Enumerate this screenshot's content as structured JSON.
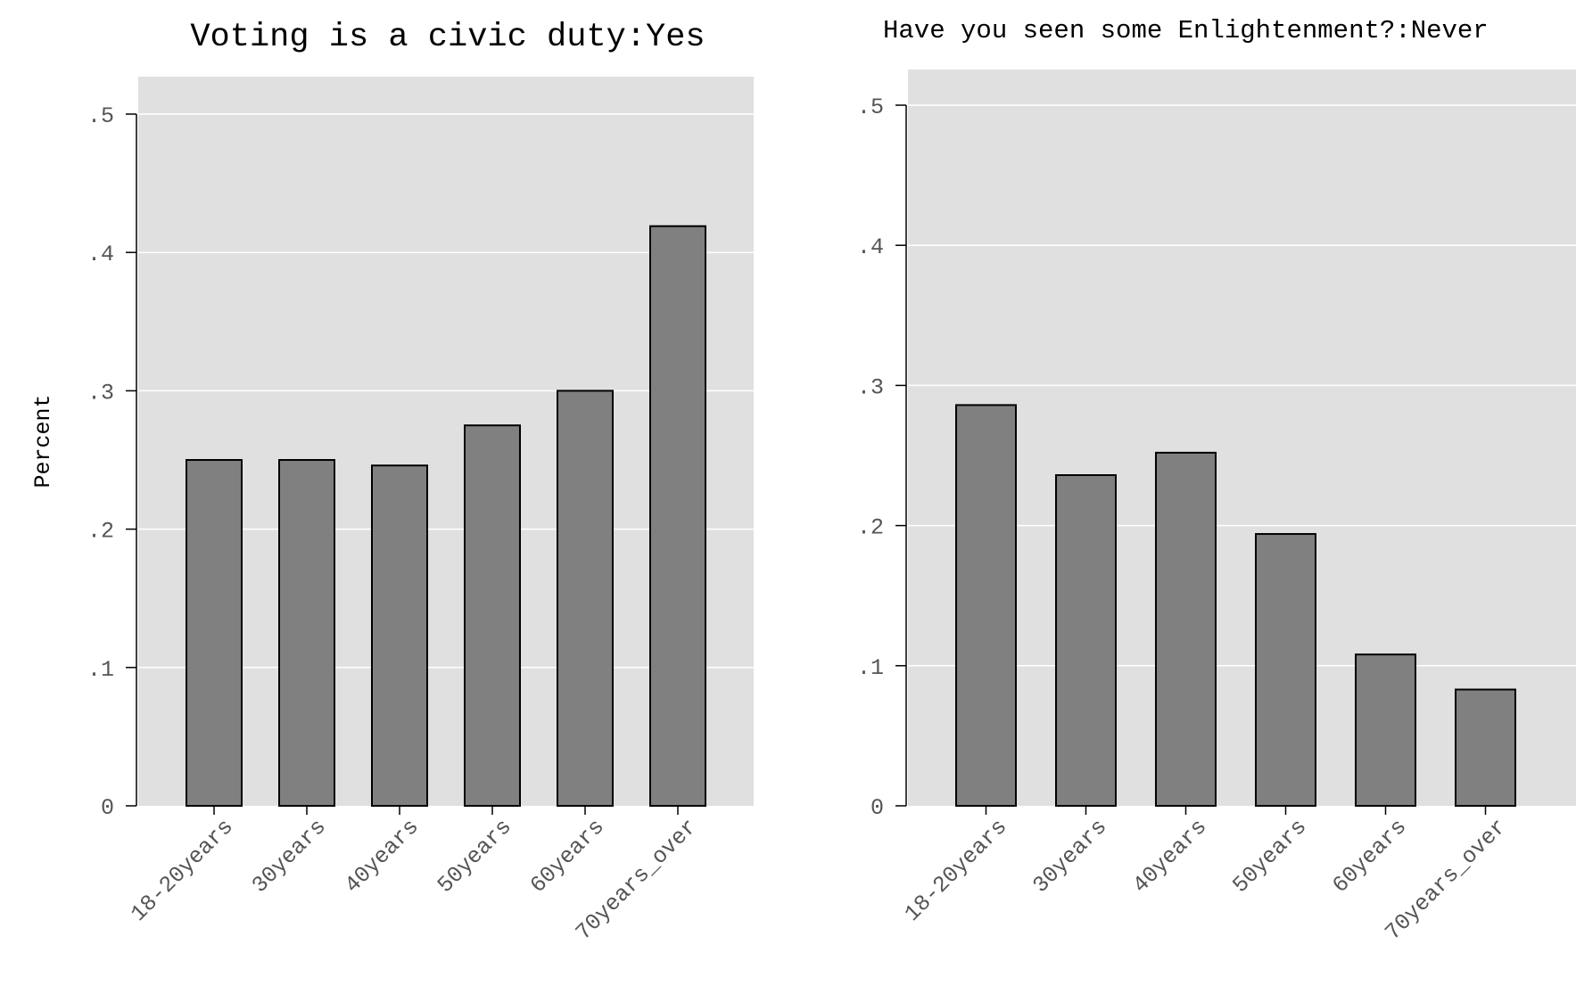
{
  "chart_data": [
    {
      "type": "bar",
      "title": "Voting is a civic duty:Yes",
      "ylabel": "Percent",
      "xlabel": "",
      "categories": [
        "18-20years",
        "30years",
        "40years",
        "50years",
        "60years",
        "70years_over"
      ],
      "values": [
        0.25,
        0.25,
        0.246,
        0.275,
        0.3,
        0.419
      ],
      "ylim": [
        0,
        0.5
      ],
      "yticks": [
        0,
        0.1,
        0.2,
        0.3,
        0.4,
        0.5
      ],
      "ytick_labels": [
        "0",
        ".1",
        ".2",
        ".3",
        ".4",
        ".5"
      ],
      "grid": true,
      "colors": {
        "bar": "#808080",
        "background": "#e0e0e0"
      }
    },
    {
      "type": "bar",
      "title": "Have you seen some Enlightenment?:Never",
      "ylabel": "",
      "xlabel": "",
      "categories": [
        "18-20years",
        "30years",
        "40years",
        "50years",
        "60years",
        "70years_over"
      ],
      "values": [
        0.286,
        0.236,
        0.252,
        0.194,
        0.108,
        0.083
      ],
      "ylim": [
        0,
        0.5
      ],
      "yticks": [
        0,
        0.1,
        0.2,
        0.3,
        0.4,
        0.5
      ],
      "ytick_labels": [
        "0",
        ".1",
        ".2",
        ".3",
        ".4",
        ".5"
      ],
      "grid": true,
      "colors": {
        "bar": "#808080",
        "background": "#e0e0e0"
      }
    }
  ]
}
